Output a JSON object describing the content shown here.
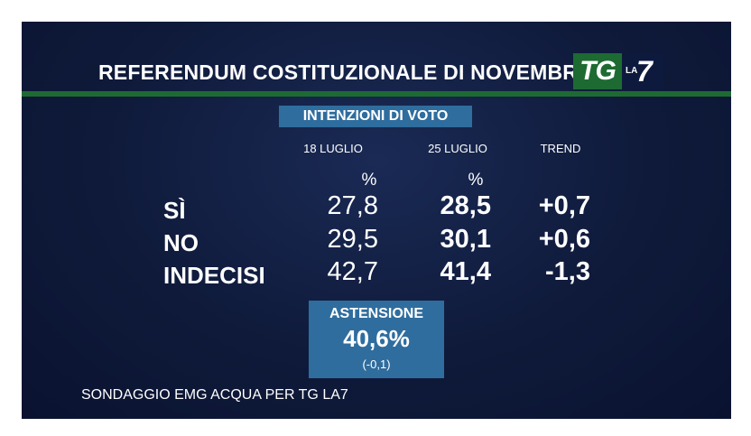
{
  "header": {
    "title": "REFERENDUM COSTITUZIONALE DI NOVEMBRE",
    "logo_tg": "TG",
    "logo_la": "LA",
    "logo_7": "7"
  },
  "chart_data": {
    "type": "table",
    "title": "INTENZIONI DI VOTO",
    "columns": [
      "18 LUGLIO",
      "25 LUGLIO",
      "TREND"
    ],
    "unit_row": [
      "%",
      "%"
    ],
    "rows": [
      {
        "label": "SÌ",
        "values": [
          "27,8",
          "28,5",
          "+0,7"
        ]
      },
      {
        "label": "NO",
        "values": [
          "29,5",
          "30,1",
          "+0,6"
        ]
      },
      {
        "label": "INDECISI",
        "values": [
          "42,7",
          "41,4",
          "-1,3"
        ]
      }
    ],
    "astensione": {
      "label": "ASTENSIONE",
      "value": "40,6%",
      "delta": "(-0,1)"
    },
    "source": "SONDAGGIO EMG ACQUA PER TG LA7"
  },
  "colors": {
    "background": "#0f1a3a",
    "accent_green": "#1d6b32",
    "accent_blue": "#2f6d9e"
  }
}
